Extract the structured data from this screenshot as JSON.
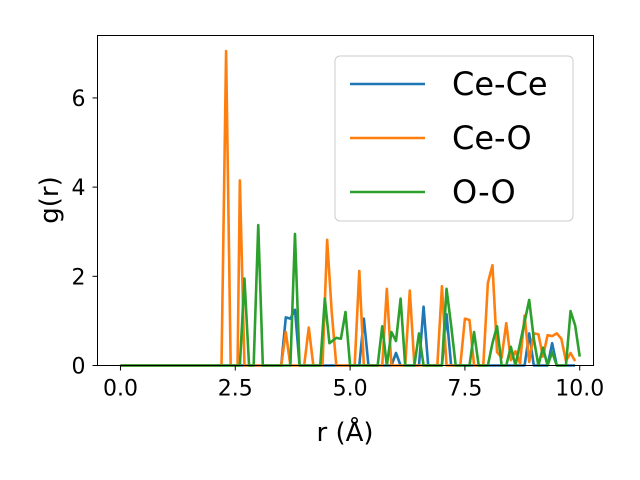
{
  "chart_data": {
    "type": "line",
    "title": "",
    "xlabel": "r (Å)",
    "ylabel": "g(r)",
    "xlim": [
      -0.5,
      10.3
    ],
    "ylim": [
      0,
      7.4
    ],
    "xticks": [
      0.0,
      2.5,
      5.0,
      7.5,
      10.0
    ],
    "xtick_labels": [
      "0.0",
      "2.5",
      "5.0",
      "7.5",
      "10.0"
    ],
    "yticks": [
      0,
      2,
      4,
      6
    ],
    "ytick_labels": [
      "0",
      "2",
      "4",
      "6"
    ],
    "grid": false,
    "legend_position": "top-right",
    "series": [
      {
        "name": "Ce-Ce",
        "color": "#1f77b4",
        "points": [
          [
            0,
            0
          ],
          [
            3.5,
            0
          ],
          [
            3.6,
            1.08
          ],
          [
            3.7,
            1.05
          ],
          [
            3.8,
            1.25
          ],
          [
            3.9,
            0
          ],
          [
            5.2,
            0
          ],
          [
            5.3,
            1.05
          ],
          [
            5.4,
            0
          ],
          [
            5.9,
            0
          ],
          [
            6.0,
            0.28
          ],
          [
            6.1,
            0
          ],
          [
            6.5,
            0
          ],
          [
            6.6,
            1.32
          ],
          [
            6.7,
            0
          ],
          [
            7.0,
            0
          ],
          [
            7.1,
            1.15
          ],
          [
            7.2,
            0
          ],
          [
            8.8,
            0
          ],
          [
            8.9,
            0.72
          ],
          [
            9.0,
            0
          ],
          [
            9.3,
            0
          ],
          [
            9.4,
            0.5
          ],
          [
            9.5,
            0
          ],
          [
            9.9,
            0
          ]
        ]
      },
      {
        "name": "Ce-O",
        "color": "#ff7f0e",
        "points": [
          [
            0,
            0
          ],
          [
            2.2,
            0
          ],
          [
            2.3,
            7.05
          ],
          [
            2.4,
            0
          ],
          [
            2.55,
            0
          ],
          [
            2.6,
            4.15
          ],
          [
            2.7,
            0
          ],
          [
            3.5,
            0
          ],
          [
            3.6,
            0.75
          ],
          [
            3.7,
            0
          ],
          [
            4.0,
            0
          ],
          [
            4.1,
            0.85
          ],
          [
            4.2,
            0
          ],
          [
            4.4,
            0
          ],
          [
            4.5,
            2.82
          ],
          [
            4.6,
            1.2
          ],
          [
            4.7,
            0
          ],
          [
            5.1,
            0
          ],
          [
            5.2,
            2.12
          ],
          [
            5.3,
            0
          ],
          [
            5.7,
            0
          ],
          [
            5.8,
            1.72
          ],
          [
            5.9,
            0
          ],
          [
            6.2,
            0
          ],
          [
            6.3,
            1.68
          ],
          [
            6.4,
            0
          ],
          [
            6.9,
            0
          ],
          [
            7.0,
            1.78
          ],
          [
            7.1,
            0
          ],
          [
            7.4,
            0
          ],
          [
            7.5,
            1.05
          ],
          [
            7.6,
            1.02
          ],
          [
            7.7,
            0
          ],
          [
            7.9,
            0
          ],
          [
            8.0,
            1.85
          ],
          [
            8.1,
            2.25
          ],
          [
            8.2,
            0.3
          ],
          [
            8.3,
            0.18
          ],
          [
            8.4,
            0.95
          ],
          [
            8.5,
            0.12
          ],
          [
            8.6,
            0.32
          ],
          [
            8.7,
            0.05
          ],
          [
            8.8,
            1.12
          ],
          [
            8.9,
            0.08
          ],
          [
            9.0,
            0.72
          ],
          [
            9.1,
            0.7
          ],
          [
            9.2,
            0.2
          ],
          [
            9.3,
            0.68
          ],
          [
            9.4,
            0.66
          ],
          [
            9.5,
            0.72
          ],
          [
            9.6,
            0.6
          ],
          [
            9.7,
            0.1
          ],
          [
            9.8,
            0.28
          ],
          [
            9.9,
            0.1
          ]
        ]
      },
      {
        "name": "O-O",
        "color": "#2ca02c",
        "points": [
          [
            0,
            0
          ],
          [
            2.6,
            0
          ],
          [
            2.7,
            1.95
          ],
          [
            2.8,
            0
          ],
          [
            2.9,
            0
          ],
          [
            3.0,
            3.15
          ],
          [
            3.1,
            0
          ],
          [
            3.7,
            0
          ],
          [
            3.8,
            2.95
          ],
          [
            3.9,
            0
          ],
          [
            4.35,
            0
          ],
          [
            4.45,
            1.5
          ],
          [
            4.55,
            0.5
          ],
          [
            4.7,
            0.62
          ],
          [
            4.8,
            0.6
          ],
          [
            4.9,
            1.2
          ],
          [
            5.0,
            0
          ],
          [
            5.6,
            0
          ],
          [
            5.7,
            0.88
          ],
          [
            5.8,
            0
          ],
          [
            5.9,
            0.75
          ],
          [
            6.0,
            0.55
          ],
          [
            6.1,
            1.5
          ],
          [
            6.2,
            0
          ],
          [
            6.4,
            0
          ],
          [
            6.5,
            0.72
          ],
          [
            6.6,
            0
          ],
          [
            7.0,
            0
          ],
          [
            7.1,
            1.72
          ],
          [
            7.2,
            0.9
          ],
          [
            7.3,
            0
          ],
          [
            7.6,
            0
          ],
          [
            7.7,
            0.75
          ],
          [
            7.8,
            0
          ],
          [
            8.0,
            0
          ],
          [
            8.1,
            0.5
          ],
          [
            8.2,
            0.88
          ],
          [
            8.3,
            0
          ],
          [
            8.4,
            0
          ],
          [
            8.5,
            0.42
          ],
          [
            8.6,
            0
          ],
          [
            8.9,
            1.47
          ],
          [
            9.0,
            0.6
          ],
          [
            9.1,
            0
          ],
          [
            9.2,
            0.4
          ],
          [
            9.3,
            0
          ],
          [
            9.4,
            0.3
          ],
          [
            9.5,
            0
          ],
          [
            9.7,
            0
          ],
          [
            9.8,
            1.22
          ],
          [
            9.9,
            0.9
          ],
          [
            10.0,
            0.2
          ]
        ]
      }
    ]
  }
}
